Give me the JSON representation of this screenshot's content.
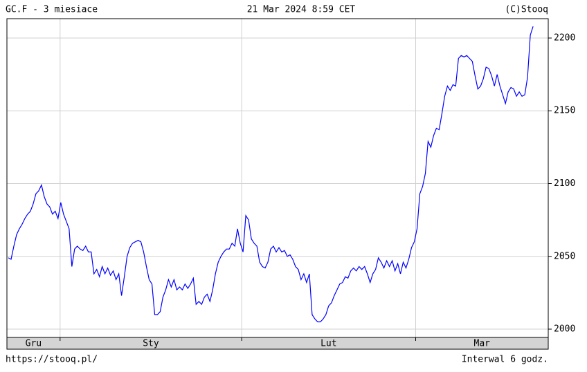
{
  "chart_data": {
    "type": "line",
    "title": "GC.F - 3 miesiace",
    "subtitle": "21 Mar 2024 8:59 CET",
    "credit": "(C)Stooq",
    "source": "https://stooq.pl/",
    "note": "Interwal 6 godz.",
    "series": [
      {
        "color": "#0000ff",
        "values": [
          2049,
          2048,
          2057,
          2065,
          2069,
          2072,
          2076,
          2079,
          2081,
          2086,
          2093,
          2095,
          2099,
          2091,
          2086,
          2084,
          2079,
          2081,
          2076,
          2087,
          2079,
          2074,
          2069,
          2043,
          2055,
          2057,
          2055,
          2054,
          2057,
          2053,
          2053,
          2038,
          2041,
          2036,
          2043,
          2038,
          2042,
          2037,
          2040,
          2034,
          2038,
          2023,
          2036,
          2050,
          2056,
          2059,
          2060,
          2061,
          2060,
          2053,
          2043,
          2034,
          2031,
          2010,
          2010,
          2012,
          2022,
          2027,
          2034,
          2029,
          2034,
          2027,
          2029,
          2027,
          2031,
          2028,
          2031,
          2035,
          2017,
          2019,
          2017,
          2022,
          2024,
          2019,
          2027,
          2038,
          2046,
          2050,
          2053,
          2055,
          2055,
          2059,
          2057,
          2069,
          2059,
          2053,
          2078,
          2075,
          2062,
          2059,
          2057,
          2046,
          2043,
          2042,
          2046,
          2055,
          2057,
          2053,
          2056,
          2053,
          2054,
          2050,
          2051,
          2048,
          2043,
          2041,
          2034,
          2038,
          2032,
          2038,
          2010,
          2007,
          2005,
          2005,
          2007,
          2010,
          2016,
          2018,
          2023,
          2027,
          2031,
          2032,
          2036,
          2035,
          2040,
          2042,
          2040,
          2043,
          2041,
          2043,
          2038,
          2032,
          2038,
          2041,
          2049,
          2046,
          2042,
          2047,
          2043,
          2047,
          2040,
          2045,
          2038,
          2046,
          2042,
          2048,
          2056,
          2060,
          2069,
          2093,
          2098,
          2107,
          2129,
          2125,
          2133,
          2138,
          2137,
          2148,
          2160,
          2167,
          2164,
          2168,
          2167,
          2186,
          2188,
          2187,
          2188,
          2186,
          2184,
          2174,
          2165,
          2167,
          2172,
          2180,
          2179,
          2174,
          2167,
          2175,
          2167,
          2161,
          2155,
          2163,
          2166,
          2165,
          2160,
          2163,
          2160,
          2161,
          2173,
          2202,
          2208
        ]
      }
    ],
    "x_labels": [
      "Gru",
      "Sty",
      "Lut",
      "Mar"
    ],
    "xlim": [
      -0.5,
      195.5
    ],
    "xticks": [
      18.75,
      84.5,
      147.5
    ],
    "ylim": [
      1994.3,
      2213.3
    ],
    "yticks": [
      2000,
      2050,
      2100,
      2150,
      2200
    ],
    "grid": true
  }
}
